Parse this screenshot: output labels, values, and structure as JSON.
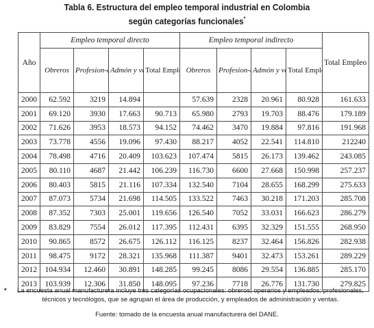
{
  "title": {
    "line1": "Tabla 6. Estructura del empleo temporal industrial en Colombia",
    "line2": "según categorías funcionales",
    "marker": "*"
  },
  "table": {
    "year_header": "Año",
    "group_direct": "Empleo temporal directo",
    "group_indirect": "Empleo temporal indirecto",
    "col_total": "Total Empleo temporal",
    "sub_direct": [
      "Obreros",
      "Profesion-ales",
      "Admón y ventas",
      "Total Empleo temporal directo"
    ],
    "sub_indirect": [
      "Obreros",
      "Profesion-ales",
      "Admón y ventas",
      "Total Empleo temporal indirecto"
    ],
    "rows": [
      [
        "2000",
        "62.592",
        "3219",
        "14.894",
        "",
        "57.639",
        "2328",
        "20.961",
        "80.928",
        "161.633"
      ],
      [
        "2001",
        "69.120",
        "3930",
        "17.663",
        "90.713",
        "65.980",
        "2793",
        "19.703",
        "88.476",
        "179.189"
      ],
      [
        "2002",
        "71.626",
        "3953",
        "18.573",
        "94.152",
        "74.462",
        "3470",
        "19.884",
        "97.816",
        "191.968"
      ],
      [
        "2003",
        "73.778",
        "4556",
        "19.096",
        "97.430",
        "88.217",
        "4052",
        "22.541",
        "114.810",
        "212240"
      ],
      [
        "2004",
        "78.498",
        "4716",
        "20.409",
        "103.623",
        "107.474",
        "5815",
        "26.173",
        "139.462",
        "243.085"
      ],
      [
        "2005",
        "80.110",
        "4687",
        "21.442",
        "106.239",
        "116.730",
        "6600",
        "27.668",
        "150.998",
        "257.237"
      ],
      [
        "2006",
        "80.403",
        "5815",
        "21.116",
        "107.334",
        "132.540",
        "7104",
        "28.655",
        "168.299",
        "275.633"
      ],
      [
        "2007",
        "87.073",
        "5734",
        "21.698",
        "114.505",
        "133.522",
        "7463",
        "30.218",
        "171.203",
        "285.708"
      ],
      [
        "2008",
        "87.352",
        "7303",
        "25.001",
        "119.656",
        "126.540",
        "7052",
        "33.031",
        "166.623",
        "286.279"
      ],
      [
        "2009",
        "83.829",
        "7554",
        "26.012",
        "117.395",
        "112.431",
        "6395",
        "32.329",
        "151.555",
        "268.950"
      ],
      [
        "2010",
        "90.865",
        "8572",
        "26.675",
        "126.112",
        "116.125",
        "8237",
        "32.464",
        "156.826",
        "282.938"
      ],
      [
        "2011",
        "98.475",
        "9172",
        "28.321",
        "135.968",
        "111.387",
        "9401",
        "32.473",
        "153.261",
        "289.229"
      ],
      [
        "2012",
        "104.934",
        "12.460",
        "30.891",
        "148.285",
        "99.245",
        "8086",
        "29.554",
        "136.885",
        "285.170"
      ],
      [
        "2013",
        "103.939",
        "12.306",
        "31.850",
        "148.095",
        "97.236",
        "7718",
        "26.776",
        "131.730",
        "279.825"
      ]
    ]
  },
  "note": {
    "marker": "*",
    "text": "La encuesta anual manufacturera incluye tres categorías ocupacionales: obreros, operarios y empleados; profesionales, técnicos y tecnólogos, que se agrupan el área de producción, y empleados de administración y ventas."
  },
  "source": "Fuente: tomado de la encuesta anual manufacturera del DANE."
}
